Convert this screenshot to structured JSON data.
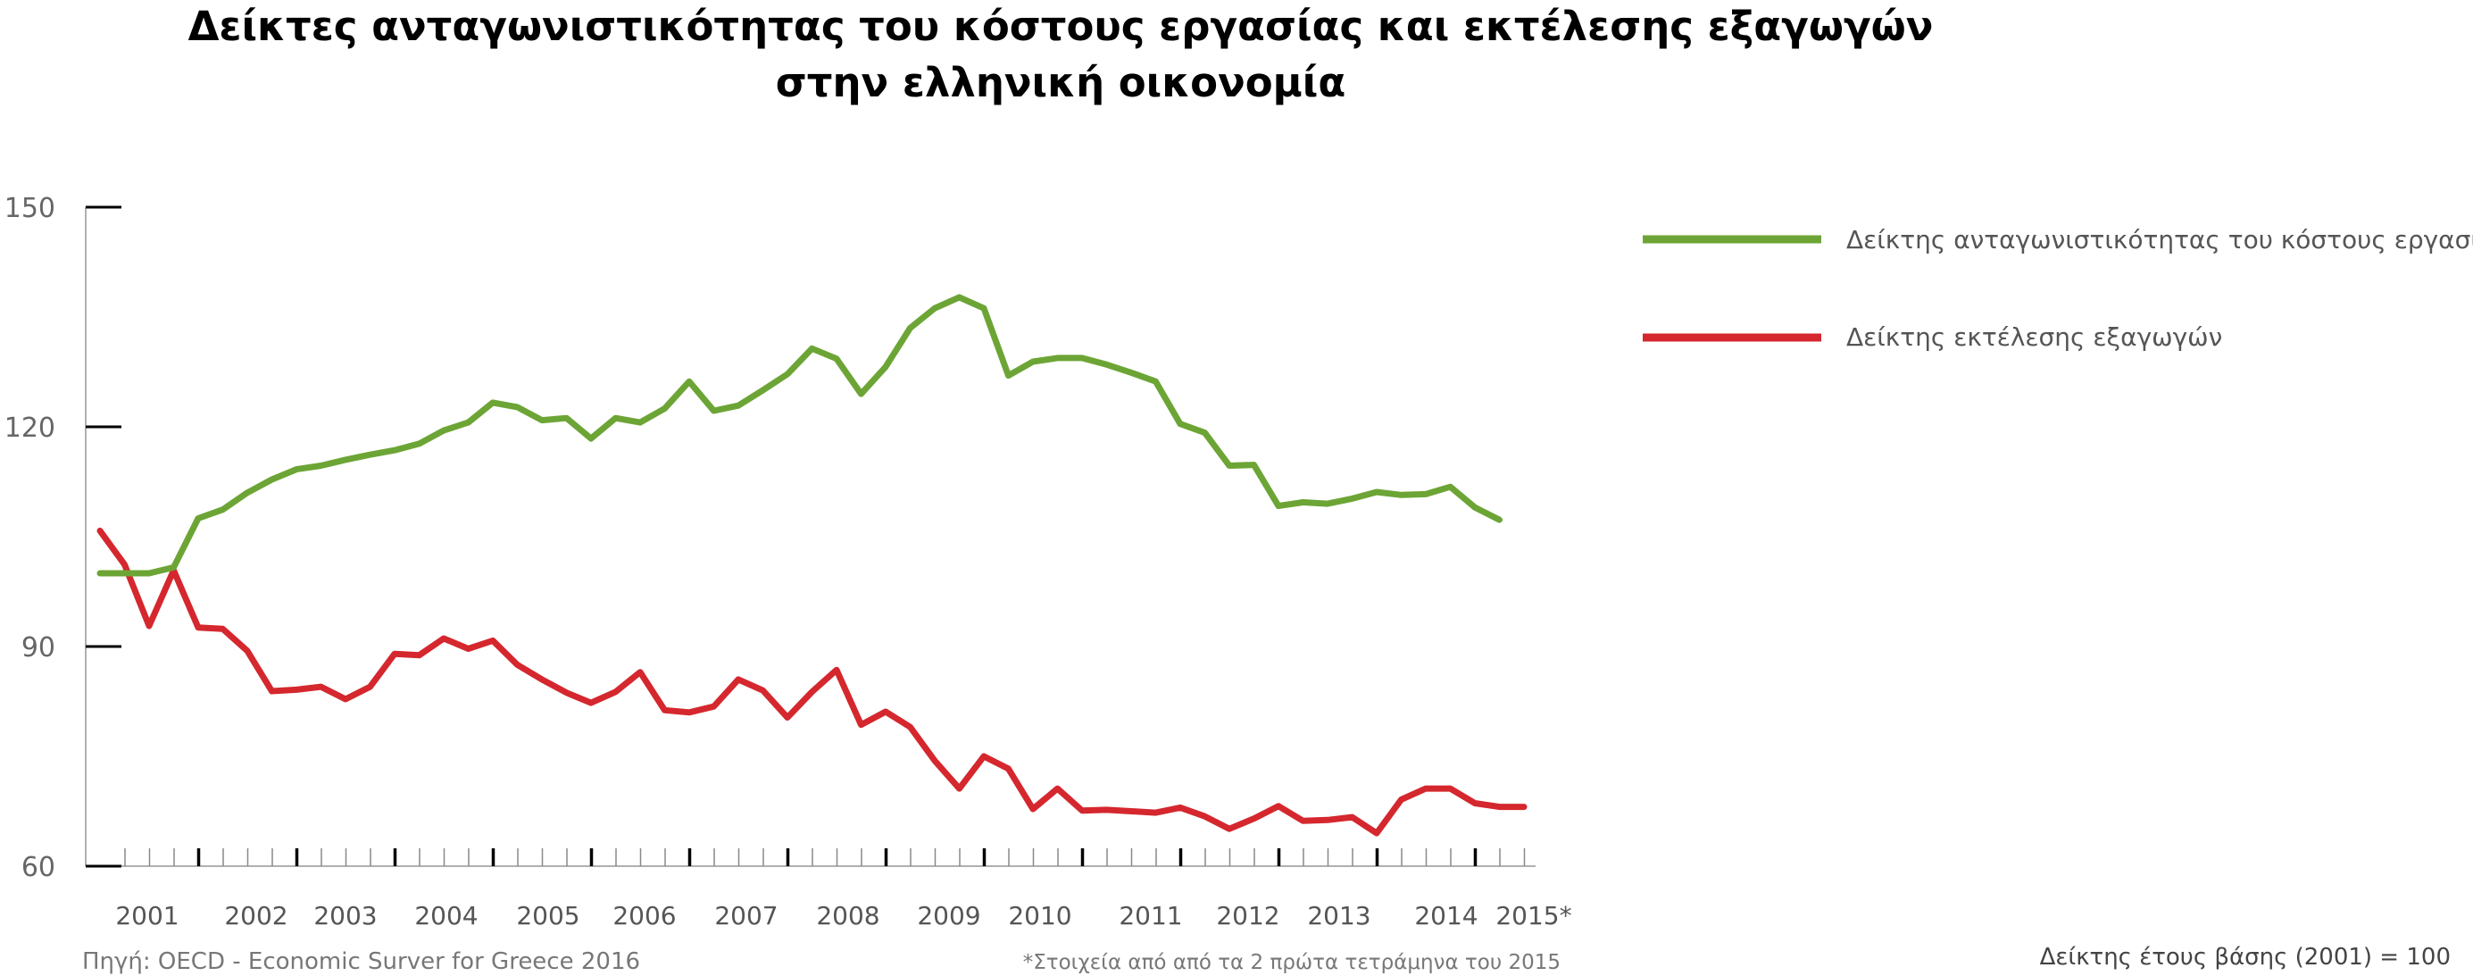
{
  "chart_data": {
    "type": "line",
    "title": "Δείκτες ανταγωνιστικότητας του κόστους εργασίας και εκτέλεσης εξαγωγών",
    "subtitle": "στην ελληνική οικονομία",
    "xlabel": "",
    "ylabel": "",
    "ylim": [
      60,
      150
    ],
    "yticks": [
      "150",
      "120",
      "90",
      "60"
    ],
    "year_labels": [
      "2001",
      "2002",
      "2003",
      "2004",
      "2005",
      "2006",
      "2007",
      "2008",
      "2009",
      "2010",
      "2011",
      "2012",
      "2013",
      "2014",
      "2015*"
    ],
    "legend_placement": "top-right",
    "grid": false,
    "series": [
      {
        "name": "Δείκτης ανταγωνιστικότητας του κόστους εργασίας",
        "color": "#6ca535",
        "values": [
          100,
          100,
          100,
          100.8,
          107.5,
          108.7,
          111,
          112.8,
          114.2,
          114.7,
          115.5,
          116.2,
          116.8,
          117.7,
          119.5,
          120.6,
          123.3,
          122.7,
          120.9,
          121.2,
          118.4,
          121.2,
          120.6,
          122.5,
          126.2,
          122.2,
          122.9,
          125,
          127.2,
          130.7,
          129.3,
          124.5,
          128.2,
          133.5,
          136.2,
          137.7,
          136.2,
          127,
          128.9,
          129.4,
          129.4,
          128.5,
          127.4,
          126.2,
          120.4,
          119.2,
          114.7,
          114.8,
          109.2,
          109.7,
          109.5,
          110.2,
          111.1,
          110.7,
          110.8,
          111.8,
          109,
          107.3
        ]
      },
      {
        "name": "Δείκτης εκτέλεσης εξαγωγών",
        "color": "#d5272e",
        "values": [
          105.8,
          101.2,
          92.8,
          100.4,
          92.6,
          92.4,
          89.4,
          83.9,
          84.1,
          84.5,
          82.8,
          84.5,
          89,
          88.8,
          91.1,
          89.7,
          90.8,
          87.5,
          85.5,
          83.7,
          82.3,
          83.8,
          86.5,
          81.3,
          81,
          81.8,
          85.5,
          84,
          80.3,
          83.8,
          86.8,
          79.3,
          81.1,
          79,
          74.4,
          70.6,
          75,
          73.3,
          67.8,
          70.6,
          67.6,
          67.7,
          67.5,
          67.3,
          68,
          66.8,
          65.1,
          66.5,
          68.2,
          66.2,
          66.3,
          66.7,
          64.5,
          69.1,
          70.6,
          70.6,
          68.6,
          68.1,
          68.1
        ]
      }
    ]
  },
  "source_note": "Πηγή: OECD - Economic Surver for Greece 2016",
  "footnote": "*Στοιχεία από από τα 2 πρώτα τετράμηνα του 2015",
  "base_note": "Δείκτης έτους βάσης (2001) = 100"
}
